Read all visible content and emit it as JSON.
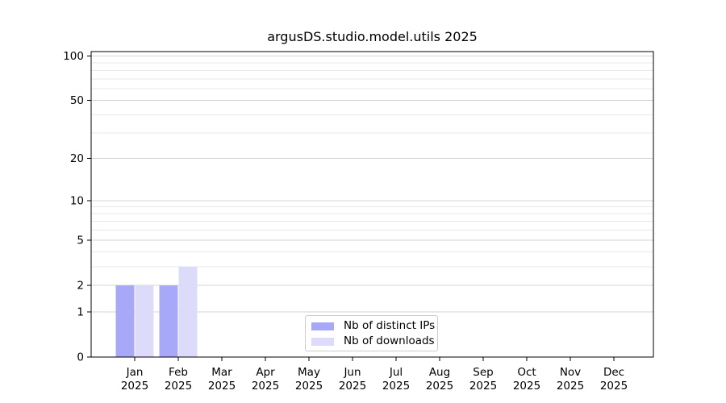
{
  "chart_data": {
    "type": "bar",
    "title": "argusDS.studio.model.utils 2025",
    "categories": [
      "Jan 2025",
      "Feb 2025",
      "Mar 2025",
      "Apr 2025",
      "May 2025",
      "Jun 2025",
      "Jul 2025",
      "Aug 2025",
      "Sep 2025",
      "Oct 2025",
      "Nov 2025",
      "Dec 2025"
    ],
    "series": [
      {
        "name": "Nb of distinct IPs",
        "color": "#a8a8f8",
        "values": [
          2,
          2,
          0,
          0,
          0,
          0,
          0,
          0,
          0,
          0,
          0,
          0
        ]
      },
      {
        "name": "Nb of downloads",
        "color": "#dcdcfa",
        "values": [
          2,
          3,
          0,
          0,
          0,
          0,
          0,
          0,
          0,
          0,
          0,
          0
        ]
      }
    ],
    "yscale": "log1p",
    "yticks": [
      0,
      1,
      2,
      5,
      10,
      20,
      50,
      100
    ],
    "minor_yticks": [
      3,
      4,
      6,
      7,
      8,
      9,
      30,
      40,
      60,
      70,
      80,
      90
    ],
    "ylim": [
      0,
      107
    ],
    "xlabel": "",
    "ylabel": "",
    "grid": "horizontal",
    "legend_position": "lower center"
  },
  "colors": {
    "background": "#ffffff",
    "axis": "#000000",
    "grid_major": "#d4d4d4",
    "grid_minor": "#e8e8e8",
    "tick_label": "#000000",
    "legend_border": "#cccccc"
  }
}
